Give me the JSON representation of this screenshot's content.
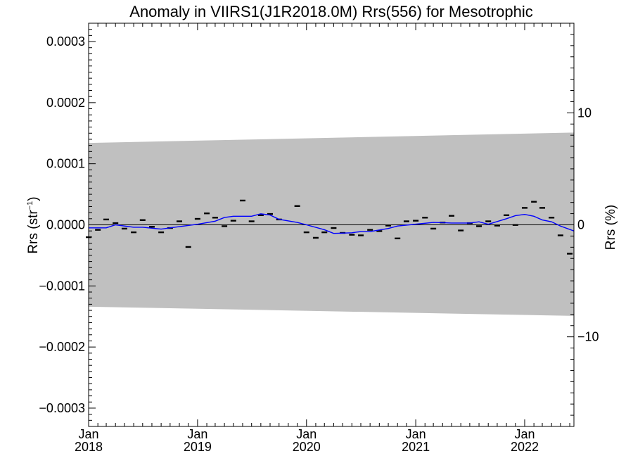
{
  "chart_data": {
    "type": "scatter",
    "title": "Anomaly in VIIRS1(J1R2018.0M) Rrs(556) for Mesotrophic",
    "ylabel_left": "Rrs (str",
    "ylabel_left_sup": "−1",
    "ylabel_left_close": ")",
    "ylabel_right": "Rrs (%)",
    "xlim": [
      "2018-01-01",
      "2022-06-15"
    ],
    "ylim_left": [
      -0.00033,
      0.00033
    ],
    "ylim_right": [
      -18,
      18
    ],
    "x_ticks": [
      {
        "date": "2018-01-01",
        "month": "Jan",
        "year": "2018"
      },
      {
        "date": "2019-01-01",
        "month": "Jan",
        "year": "2019"
      },
      {
        "date": "2020-01-01",
        "month": "Jan",
        "year": "2020"
      },
      {
        "date": "2021-01-01",
        "month": "Jan",
        "year": "2021"
      },
      {
        "date": "2022-01-01",
        "month": "Jan",
        "year": "2022"
      }
    ],
    "y_ticks_left": [
      {
        "value": 0.0003,
        "label": "0.0003"
      },
      {
        "value": 0.0002,
        "label": "0.0002"
      },
      {
        "value": 0.0001,
        "label": "0.0001"
      },
      {
        "value": 0.0,
        "label": "0.0000"
      },
      {
        "value": -0.0001,
        "label": "−0.0001"
      },
      {
        "value": -0.0002,
        "label": "−0.0002"
      },
      {
        "value": -0.0003,
        "label": "−0.0003"
      }
    ],
    "y_ticks_right": [
      {
        "value": 10,
        "label": "10"
      },
      {
        "value": 0,
        "label": "0"
      },
      {
        "value": -10,
        "label": "−10"
      }
    ],
    "uncertainty_band": {
      "color": "#c0c0c0",
      "upper": [
        [
          "2018-01-01",
          0.000134
        ],
        [
          "2022-06-15",
          0.000151
        ]
      ],
      "lower": [
        [
          "2018-01-01",
          -0.000134
        ],
        [
          "2022-06-15",
          -0.000149
        ]
      ]
    },
    "zero_line_color": "#000000",
    "series": [
      {
        "kind": "markers",
        "color": "#000000",
        "points": [
          [
            "2018-01-01",
            -2e-05
          ],
          [
            "2018-02-01",
            -8e-06
          ],
          [
            "2018-03-01",
            9e-06
          ],
          [
            "2018-04-01",
            3e-06
          ],
          [
            "2018-05-01",
            -6e-06
          ],
          [
            "2018-06-01",
            -1.2e-05
          ],
          [
            "2018-07-01",
            8e-06
          ],
          [
            "2018-08-01",
            -3e-06
          ],
          [
            "2018-09-01",
            -1.2e-05
          ],
          [
            "2018-10-01",
            -5e-06
          ],
          [
            "2018-11-01",
            6e-06
          ],
          [
            "2018-12-01",
            -3.6e-05
          ],
          [
            "2019-01-01",
            1e-05
          ],
          [
            "2019-02-01",
            1.9e-05
          ],
          [
            "2019-03-01",
            1.2e-05
          ],
          [
            "2019-04-01",
            -2e-06
          ],
          [
            "2019-05-01",
            7e-06
          ],
          [
            "2019-06-01",
            4e-05
          ],
          [
            "2019-07-01",
            6e-06
          ],
          [
            "2019-08-01",
            1.6e-05
          ],
          [
            "2019-09-01",
            1.8e-05
          ],
          [
            "2019-10-01",
            9e-06
          ],
          [
            "2019-12-01",
            3.1e-05
          ],
          [
            "2020-01-01",
            -1.2e-05
          ],
          [
            "2020-02-01",
            -2.1e-05
          ],
          [
            "2020-03-01",
            -1.2e-05
          ],
          [
            "2020-04-01",
            -5e-06
          ],
          [
            "2020-05-01",
            -1.3e-05
          ],
          [
            "2020-06-01",
            -1.6e-05
          ],
          [
            "2020-07-01",
            -1.7e-05
          ],
          [
            "2020-08-01",
            -8e-06
          ],
          [
            "2020-09-01",
            -1e-05
          ],
          [
            "2020-10-01",
            -1e-06
          ],
          [
            "2020-11-01",
            -2.2e-05
          ],
          [
            "2020-12-01",
            6e-06
          ],
          [
            "2021-01-01",
            7e-06
          ],
          [
            "2021-02-01",
            1.2e-05
          ],
          [
            "2021-03-01",
            -6e-06
          ],
          [
            "2021-04-01",
            4e-06
          ],
          [
            "2021-05-01",
            1.5e-05
          ],
          [
            "2021-06-01",
            -9e-06
          ],
          [
            "2021-07-01",
            3e-06
          ],
          [
            "2021-08-01",
            -2e-06
          ],
          [
            "2021-09-01",
            6e-06
          ],
          [
            "2021-10-01",
            -1e-06
          ],
          [
            "2021-11-01",
            1.6e-05
          ],
          [
            "2021-12-01",
            0.0
          ],
          [
            "2022-01-01",
            2.8e-05
          ],
          [
            "2022-02-01",
            3.8e-05
          ],
          [
            "2022-03-01",
            2.8e-05
          ],
          [
            "2022-04-01",
            1.2e-05
          ],
          [
            "2022-05-01",
            -1.7e-05
          ],
          [
            "2022-06-01",
            -4.7e-05
          ]
        ]
      },
      {
        "kind": "line",
        "color": "#0000ff",
        "points": [
          [
            "2018-01-01",
            -5e-06
          ],
          [
            "2018-03-01",
            -5e-06
          ],
          [
            "2018-04-01",
            0.0
          ],
          [
            "2018-06-01",
            -4e-06
          ],
          [
            "2018-07-01",
            -4e-06
          ],
          [
            "2018-09-01",
            -7e-06
          ],
          [
            "2018-11-01",
            -3e-06
          ],
          [
            "2019-01-01",
            1e-06
          ],
          [
            "2019-03-01",
            6e-06
          ],
          [
            "2019-04-01",
            1.2e-05
          ],
          [
            "2019-05-01",
            1.4e-05
          ],
          [
            "2019-07-01",
            1.4e-05
          ],
          [
            "2019-08-01",
            1.8e-05
          ],
          [
            "2019-09-01",
            1.6e-05
          ],
          [
            "2019-10-01",
            9e-06
          ],
          [
            "2019-12-01",
            4e-06
          ],
          [
            "2020-01-01",
            0.0
          ],
          [
            "2020-03-01",
            -8e-06
          ],
          [
            "2020-04-01",
            -1.4e-05
          ],
          [
            "2020-06-01",
            -1.3e-05
          ],
          [
            "2020-07-01",
            -1.1e-05
          ],
          [
            "2020-08-01",
            -1.1e-05
          ],
          [
            "2020-10-01",
            -6e-06
          ],
          [
            "2020-11-01",
            -2e-06
          ],
          [
            "2021-01-01",
            1e-06
          ],
          [
            "2021-03-01",
            4e-06
          ],
          [
            "2021-05-01",
            3e-06
          ],
          [
            "2021-07-01",
            3e-06
          ],
          [
            "2021-08-01",
            5e-06
          ],
          [
            "2021-09-01",
            1e-06
          ],
          [
            "2021-11-01",
            1e-05
          ],
          [
            "2021-12-01",
            1.5e-05
          ],
          [
            "2022-01-01",
            1.7e-05
          ],
          [
            "2022-02-01",
            1.4e-05
          ],
          [
            "2022-03-01",
            8e-06
          ],
          [
            "2022-04-01",
            5e-06
          ],
          [
            "2022-05-01",
            -2e-06
          ],
          [
            "2022-06-15",
            -1e-05
          ]
        ]
      }
    ]
  }
}
